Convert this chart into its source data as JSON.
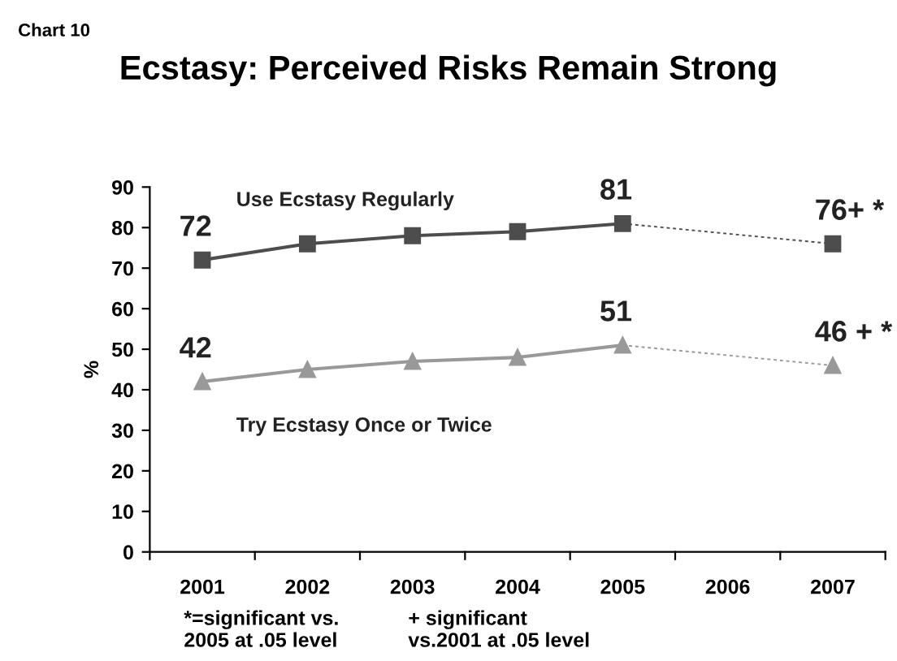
{
  "chart_data": {
    "type": "line",
    "title": "Ecstasy: Perceived Risks Remain Strong",
    "ylabel": "%",
    "categories": [
      "2001",
      "2002",
      "2003",
      "2004",
      "2005",
      "2006",
      "2007"
    ],
    "series": [
      {
        "name": "Use Ecstasy Regularly",
        "color": "#4d4d4d",
        "marker": "square",
        "values": [
          72,
          76,
          78,
          79,
          81,
          null,
          76
        ],
        "value_labels": [
          "72",
          null,
          null,
          null,
          "81",
          null,
          "76+ *"
        ]
      },
      {
        "name": "Try Ecstasy Once or Twice",
        "color": "#999999",
        "marker": "triangle",
        "values": [
          42,
          45,
          47,
          48,
          51,
          null,
          46
        ],
        "value_labels": [
          "42",
          null,
          null,
          null,
          "51",
          null,
          "46 + *"
        ]
      }
    ],
    "ylim": [
      0,
      90
    ],
    "yticks": [
      0,
      10,
      20,
      30,
      40,
      50,
      60,
      70,
      80,
      90
    ],
    "grid": false,
    "legend": false,
    "annotations": [
      "Chart 10",
      "*=significant vs.\n2005 at .05 level",
      "+ significant\nvs.2001 at .05 level"
    ]
  }
}
